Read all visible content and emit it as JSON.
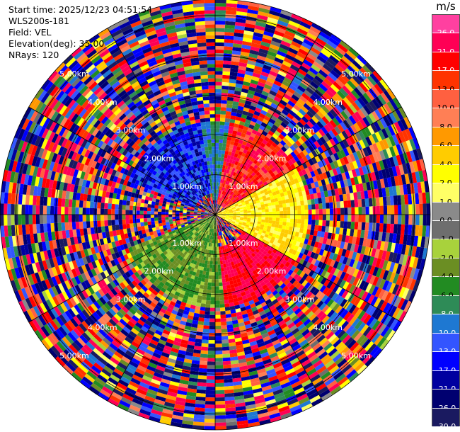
{
  "info": {
    "start_time": "Start time: 2025/12/23 04:51:54",
    "station": "WLS200s-181",
    "field": "Field: VEL",
    "elevation": "Elevation(deg): 35.00",
    "nrays": "NRays: 120"
  },
  "colorbar": {
    "unit": "m/s",
    "levels": [
      {
        "label": "26.0",
        "color": "#ff40a0"
      },
      {
        "label": "21.0",
        "color": "#ff0055"
      },
      {
        "label": "17.0",
        "color": "#ff0000"
      },
      {
        "label": "13.0",
        "color": "#ff3300"
      },
      {
        "label": "10.0",
        "color": "#ff6040"
      },
      {
        "label": "8.0",
        "color": "#ff7f55"
      },
      {
        "label": "6.0",
        "color": "#ff9900"
      },
      {
        "label": "4.0",
        "color": "#ffcc00"
      },
      {
        "label": "2.0",
        "color": "#ffff00"
      },
      {
        "label": "1.0",
        "color": "#ffff66"
      },
      {
        "label": "0.0",
        "color": "#8a8a8a"
      },
      {
        "label": "-1.0",
        "color": "#6e6e6e"
      },
      {
        "label": "-2.0",
        "color": "#a8d23c"
      },
      {
        "label": "-4.0",
        "color": "#6b8e23"
      },
      {
        "label": "-6.0",
        "color": "#228b22"
      },
      {
        "label": "-8.0",
        "color": "#2e8b57"
      },
      {
        "label": "-10.0",
        "color": "#1e78d2"
      },
      {
        "label": "-13.0",
        "color": "#3355ff"
      },
      {
        "label": "-17.0",
        "color": "#0000ff"
      },
      {
        "label": "-21.0",
        "color": "#0000a0"
      },
      {
        "label": "-26.0",
        "color": "#000070"
      },
      {
        "label": "-30.0",
        "color": "#1a1a60"
      }
    ]
  },
  "chart_data": {
    "type": "heatmap",
    "projection": "polar PPI",
    "field": "VEL",
    "unit": "m/s",
    "nrays": 120,
    "elevation_deg": 35.0,
    "max_range_km": 5.4,
    "range_rings_km": [
      1.0,
      2.0,
      3.0,
      4.0,
      5.0
    ],
    "ring_labels": [
      "1.00km",
      "2.00km",
      "3.00km",
      "4.00km",
      "5.00km"
    ],
    "ring_label_azimuths_deg": [
      45,
      135,
      225,
      315
    ],
    "spokes": "every 30 deg",
    "pattern": {
      "inner_coherent_range_km": 2.3,
      "regions": [
        {
          "azimuth_deg": [
            290,
            350
          ],
          "range_km": [
            0.5,
            2.2
          ],
          "velocity": "negative (-8 to -21)"
        },
        {
          "azimuth_deg": [
            10,
            60
          ],
          "range_km": [
            0.3,
            2.0
          ],
          "velocity": "positive (+10 to +26)"
        },
        {
          "azimuth_deg": [
            60,
            120
          ],
          "range_km": [
            0.2,
            1.6
          ],
          "velocity": "weak positive (+1 to +6)"
        },
        {
          "azimuth_deg": [
            120,
            175
          ],
          "range_km": [
            0.8,
            2.4
          ],
          "velocity": "strong positive (+17 to +26)"
        },
        {
          "azimuth_deg": [
            175,
            250
          ],
          "range_km": [
            0.2,
            2.0
          ],
          "velocity": "weak negative (-1 to -6)"
        }
      ],
      "outer": "noisy mixed velocities beyond ~2.3 km"
    }
  }
}
